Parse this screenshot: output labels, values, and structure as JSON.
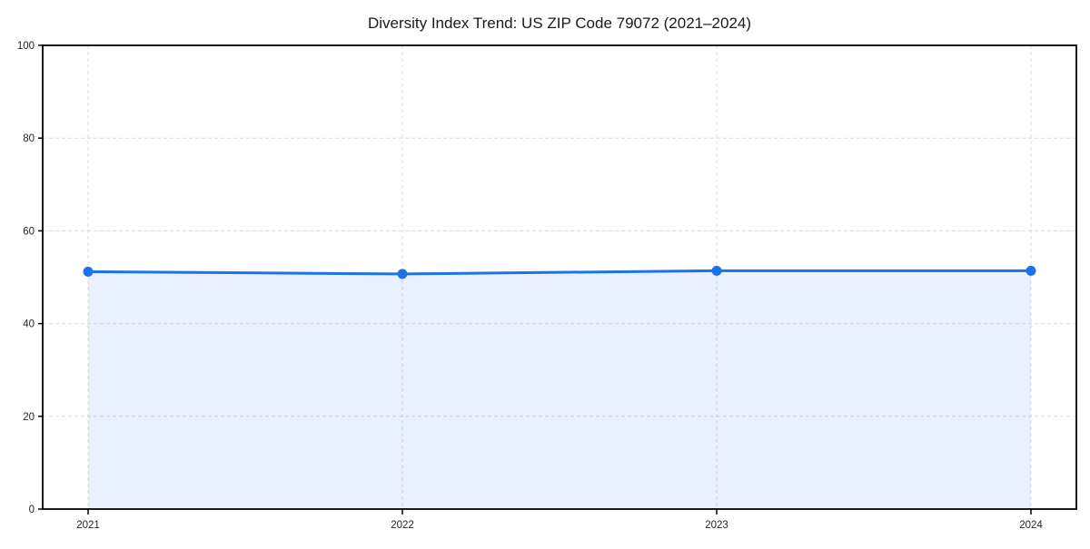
{
  "chart_data": {
    "type": "area",
    "title": "Diversity Index Trend: US ZIP Code 79072 (2021–2024)",
    "categories": [
      "2021",
      "2022",
      "2023",
      "2024"
    ],
    "x": [
      2021,
      2022,
      2023,
      2024
    ],
    "series": [
      {
        "name": "Diversity Index",
        "values": [
          51.2,
          50.7,
          51.4,
          51.4
        ]
      }
    ],
    "xlabel": "",
    "ylabel": "",
    "ylim": [
      0,
      100
    ],
    "yticks": [
      0,
      20,
      40,
      60,
      80,
      100
    ],
    "grid": {
      "visible": true,
      "style": "dashed",
      "horizontal": true,
      "vertical": true
    },
    "legend": {
      "visible": false
    },
    "marker": "circle",
    "colors": {
      "line": "#1a73e8",
      "marker": "#1a73e8",
      "fill": "#1a73e8",
      "fill_opacity": 0.1,
      "grid": "#dcdcdc",
      "axis": "#000000",
      "tick_label": "#262626",
      "title": "#1a1a1a",
      "background": "#ffffff"
    }
  }
}
